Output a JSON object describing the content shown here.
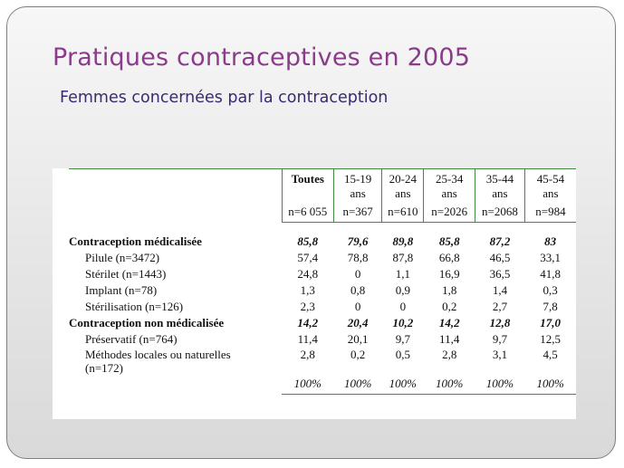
{
  "title": "Pratiques contraceptives en 2005",
  "subtitle": "Femmes concernées par la contraception",
  "table": {
    "headers": [
      [
        "Toutes",
        ""
      ],
      [
        "15-19",
        "ans"
      ],
      [
        "20-24",
        "ans"
      ],
      [
        "25-34",
        "ans"
      ],
      [
        "35-44",
        "ans"
      ],
      [
        "45-54",
        "ans"
      ]
    ],
    "n_values": [
      "n=6 055",
      "n=367",
      "n=610",
      "n=2026",
      "n=2068",
      "n=984"
    ],
    "rows": [
      {
        "label": "Contraception médicalisée",
        "values": [
          "85,8",
          "79,6",
          "89,8",
          "85,8",
          "87,2",
          "83"
        ]
      },
      {
        "label": "Pilule (n=3472)",
        "values": [
          "57,4",
          "78,8",
          "87,8",
          "66,8",
          "46,5",
          "33,1"
        ]
      },
      {
        "label": "Stérilet (n=1443)",
        "values": [
          "24,8",
          "0",
          "1,1",
          "16,9",
          "36,5",
          "41,8"
        ]
      },
      {
        "label": "Implant (n=78)",
        "values": [
          "1,3",
          "0,8",
          "0,9",
          "1,8",
          "1,4",
          "0,3"
        ]
      },
      {
        "label": "Stérilisation (n=126)",
        "values": [
          "2,3",
          "0",
          "0",
          "0,2",
          "2,7",
          "7,8"
        ]
      },
      {
        "label": "Contraception non médicalisée",
        "values": [
          "14,2",
          "20,4",
          "10,2",
          "14,2",
          "12,8",
          "17,0"
        ]
      },
      {
        "label": "Préservatif (n=764)",
        "values": [
          "11,4",
          "20,1",
          "9,7",
          "11,4",
          "9,7",
          "12,5"
        ]
      },
      {
        "label_line1": "Méthodes locales ou  naturelles",
        "label_line2": "(n=172)",
        "values": [
          "2,8",
          "0,2",
          "0,5",
          "2,8",
          "3,1",
          "4,5"
        ]
      }
    ],
    "totals": [
      "100%",
      "100%",
      "100%",
      "100%",
      "100%",
      "100%"
    ]
  }
}
